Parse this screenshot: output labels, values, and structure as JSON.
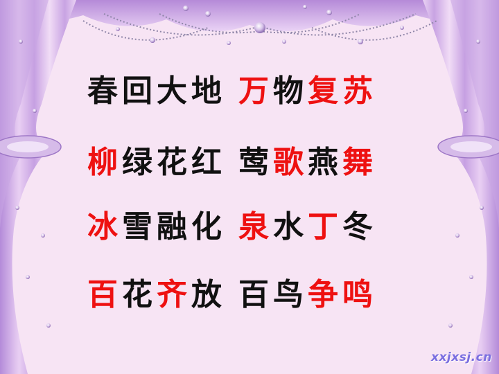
{
  "colors": {
    "background": "#f7e4f4",
    "curtain_light": "#e7c8f1",
    "curtain_dark": "#a979cf",
    "text_black": "#111111",
    "text_red": "#ee1111",
    "watermark": "#7b6fe0"
  },
  "lines": [
    {
      "chars": [
        {
          "t": "春",
          "c": "black"
        },
        {
          "t": "回",
          "c": "black"
        },
        {
          "t": "大",
          "c": "black"
        },
        {
          "t": "地",
          "c": "black"
        },
        {
          "t": "万",
          "c": "red"
        },
        {
          "t": "物",
          "c": "black"
        },
        {
          "t": "复",
          "c": "red"
        },
        {
          "t": "苏",
          "c": "red"
        }
      ]
    },
    {
      "chars": [
        {
          "t": "柳",
          "c": "red"
        },
        {
          "t": "绿",
          "c": "black"
        },
        {
          "t": "花",
          "c": "black"
        },
        {
          "t": "红",
          "c": "black"
        },
        {
          "t": "莺",
          "c": "black"
        },
        {
          "t": "歌",
          "c": "red"
        },
        {
          "t": "燕",
          "c": "black"
        },
        {
          "t": "舞",
          "c": "red"
        }
      ]
    },
    {
      "chars": [
        {
          "t": "冰",
          "c": "red"
        },
        {
          "t": "雪",
          "c": "black"
        },
        {
          "t": "融",
          "c": "black"
        },
        {
          "t": "化",
          "c": "black"
        },
        {
          "t": "泉",
          "c": "red"
        },
        {
          "t": "水",
          "c": "black"
        },
        {
          "t": "丁",
          "c": "red"
        },
        {
          "t": "冬",
          "c": "black"
        }
      ]
    },
    {
      "chars": [
        {
          "t": "百",
          "c": "red"
        },
        {
          "t": "花",
          "c": "black"
        },
        {
          "t": "齐",
          "c": "red"
        },
        {
          "t": "放",
          "c": "black"
        },
        {
          "t": "百",
          "c": "black"
        },
        {
          "t": "鸟",
          "c": "black"
        },
        {
          "t": "争",
          "c": "red"
        },
        {
          "t": "鸣",
          "c": "red"
        }
      ]
    }
  ],
  "watermark": "xxjxsj.cn"
}
